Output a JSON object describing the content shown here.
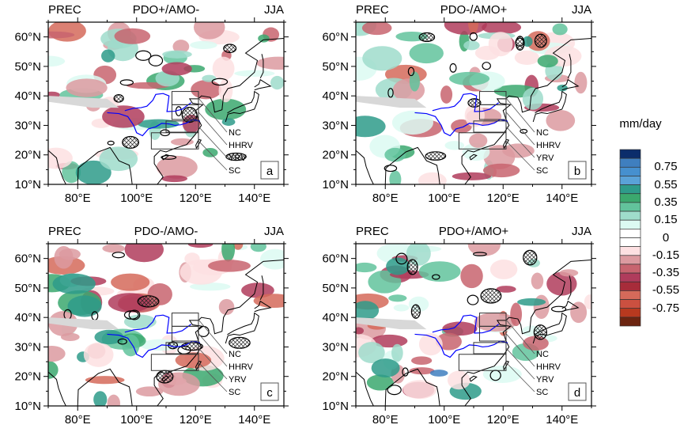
{
  "panels": [
    {
      "id": "a",
      "left": "PREC",
      "center": "PDO+/AMO-",
      "right": "JJA",
      "label": "a"
    },
    {
      "id": "b",
      "left": "PREC",
      "center": "PDO-/AMO+",
      "right": "JJA",
      "label": "b"
    },
    {
      "id": "c",
      "left": "PREC",
      "center": "PDO-/AMO-",
      "right": "JJA",
      "label": "c"
    },
    {
      "id": "d",
      "left": "PREC",
      "center": "PDO+/AMO+",
      "right": "JJA",
      "label": "d"
    }
  ],
  "map": {
    "lon_range": [
      70,
      150
    ],
    "lat_range": [
      10,
      65
    ],
    "lat_ticks": [
      {
        "value": 10,
        "label": "10°N"
      },
      {
        "value": 20,
        "label": "20°N"
      },
      {
        "value": 30,
        "label": "30°N"
      },
      {
        "value": 40,
        "label": "40°N"
      },
      {
        "value": 50,
        "label": "50°N"
      },
      {
        "value": 60,
        "label": "60°N"
      }
    ],
    "lon_ticks": [
      {
        "value": 80,
        "label": "80°E"
      },
      {
        "value": 100,
        "label": "100°E"
      },
      {
        "value": 120,
        "label": "120°E"
      },
      {
        "value": 140,
        "label": "140°E"
      }
    ],
    "regions": [
      {
        "name": "NC",
        "lon": [
          112,
          121
        ],
        "lat": [
          37,
          41.5
        ]
      },
      {
        "name": "HHRV",
        "lon": [
          112,
          121
        ],
        "lat": [
          32,
          37
        ]
      },
      {
        "name": "YRV",
        "lon": [
          110,
          121
        ],
        "lat": [
          27.7,
          31.5
        ]
      },
      {
        "name": "SC",
        "lon": [
          105,
          121
        ],
        "lat": [
          22,
          27.5
        ]
      }
    ],
    "river_color": "#0000ff"
  },
  "colorbar": {
    "title": "mm/day",
    "colors": [
      "#0b2d6b",
      "#3f7fbf",
      "#4690cf",
      "#5aa2d8",
      "#2e9b8a",
      "#3ba86e",
      "#62c39c",
      "#9fdccb",
      "#dcfaf2",
      "#ffffff",
      "#ffffff",
      "#fde0e2",
      "#dc9aa0",
      "#c8646f",
      "#b03c5c",
      "#a72c3a",
      "#d56a5a",
      "#cb5040",
      "#b8391f",
      "#6c2410"
    ],
    "labels": [
      "0.75",
      "0.55",
      "0.35",
      "0.15",
      "0",
      "-0.15",
      "-0.35",
      "-0.55",
      "-0.75"
    ]
  }
}
